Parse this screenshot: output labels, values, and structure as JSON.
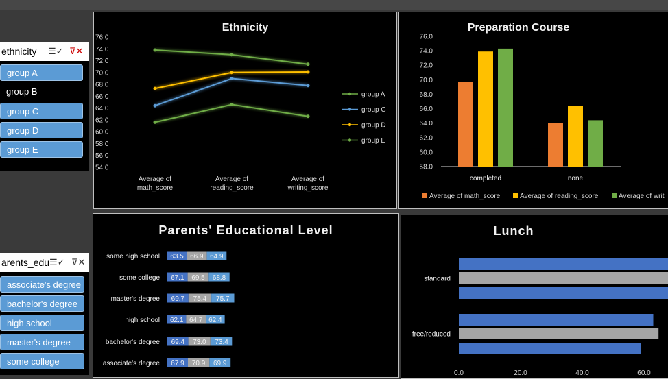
{
  "slicer_ethnicity": {
    "title": "ethnicity",
    "items": [
      {
        "label": "group A",
        "selected": true
      },
      {
        "label": "group B",
        "selected": false
      },
      {
        "label": "group C",
        "selected": true
      },
      {
        "label": "group D",
        "selected": true
      },
      {
        "label": "group E",
        "selected": true
      }
    ]
  },
  "slicer_parents": {
    "title": "arents_edu",
    "items": [
      {
        "label": "associate's degree",
        "selected": true
      },
      {
        "label": "bachelor's degree",
        "selected": true
      },
      {
        "label": "high school",
        "selected": true
      },
      {
        "label": "master's degree",
        "selected": true
      },
      {
        "label": "some college",
        "selected": true
      }
    ]
  },
  "icons": {
    "multiselect": "multiselect-icon",
    "clear_filter": "clear-filter-icon"
  },
  "colors": {
    "orange": "#ed7d31",
    "gold": "#ffc000",
    "green": "#70ad47",
    "blue": "#5b9bd5",
    "darkblue": "#4472c4",
    "gray": "#a5a5a5"
  },
  "chart_data": [
    {
      "type": "line",
      "title": "Ethnicity",
      "categories": [
        "Average of math_score",
        "Average of reading_score",
        "Average of writing_score"
      ],
      "ylim": [
        54,
        76
      ],
      "yticks": [
        "54.0",
        "56.0",
        "58.0",
        "60.0",
        "62.0",
        "64.0",
        "66.0",
        "68.0",
        "70.0",
        "72.0",
        "74.0",
        "76.0"
      ],
      "legend": "right",
      "series": [
        {
          "name": "group A",
          "values": [
            61.6,
            64.6,
            62.6
          ],
          "color": "#70ad47"
        },
        {
          "name": "group C",
          "values": [
            64.4,
            69.0,
            67.8
          ],
          "color": "#5b9bd5"
        },
        {
          "name": "group D",
          "values": [
            67.3,
            70.0,
            70.1
          ],
          "color": "#ffc000"
        },
        {
          "name": "group E",
          "values": [
            73.8,
            73.0,
            71.4
          ],
          "color": "#70ad47"
        }
      ]
    },
    {
      "type": "bar",
      "title": "Preparation Course",
      "categories": [
        "completed",
        "none"
      ],
      "ylim": [
        58,
        76
      ],
      "yticks": [
        "58.0",
        "60.0",
        "62.0",
        "64.0",
        "66.0",
        "68.0",
        "70.0",
        "72.0",
        "74.0",
        "76.0"
      ],
      "legend": "bottom",
      "series": [
        {
          "name": "Average of math_score",
          "values": [
            69.7,
            64.0
          ],
          "color": "#ed7d31"
        },
        {
          "name": "Average of reading_score",
          "values": [
            73.9,
            66.4
          ],
          "color": "#ffc000"
        },
        {
          "name": "Average of writ",
          "values": [
            74.3,
            64.4
          ],
          "color": "#70ad47"
        }
      ]
    },
    {
      "type": "bar",
      "orientation": "horizontal-stacked",
      "title": "Parents' Educational Level",
      "categories": [
        "some high school",
        "some college",
        "master's degree",
        "high school",
        "bachelor's degree",
        "associate's degree"
      ],
      "series": [
        {
          "values": [
            63.5,
            67.1,
            69.7,
            62.1,
            69.4,
            67.9
          ],
          "labels": [
            "63.5",
            "67.1",
            "69.7",
            "62.1",
            "69.4",
            "67.9"
          ],
          "color": "#4472c4"
        },
        {
          "values": [
            66.9,
            69.5,
            75.4,
            64.7,
            73.0,
            70.9
          ],
          "labels": [
            "66.9",
            "69.5",
            "75.4",
            "64.7",
            "73.0",
            "70.9"
          ],
          "color": "#a5a5a5"
        },
        {
          "values": [
            64.9,
            68.8,
            75.7,
            62.4,
            73.4,
            69.9
          ],
          "labels": [
            "64.9",
            "68.8",
            "75.7",
            "62.4",
            "73.4",
            "69.9"
          ],
          "color": "#5b9bd5"
        }
      ]
    },
    {
      "type": "bar",
      "orientation": "horizontal",
      "title": "Lunch",
      "categories": [
        "standard",
        "free/reduced"
      ],
      "xlim": [
        0,
        70
      ],
      "xticks": [
        "0.0",
        "20.0",
        "40.0",
        "60.0"
      ],
      "series": [
        {
          "values": [
            70.0,
            63.0
          ],
          "color": "#4472c4"
        },
        {
          "values": [
            72.0,
            64.7
          ],
          "color": "#a5a5a5"
        },
        {
          "values": [
            71.7,
            59.0
          ],
          "color": "#4472c4"
        }
      ]
    }
  ]
}
